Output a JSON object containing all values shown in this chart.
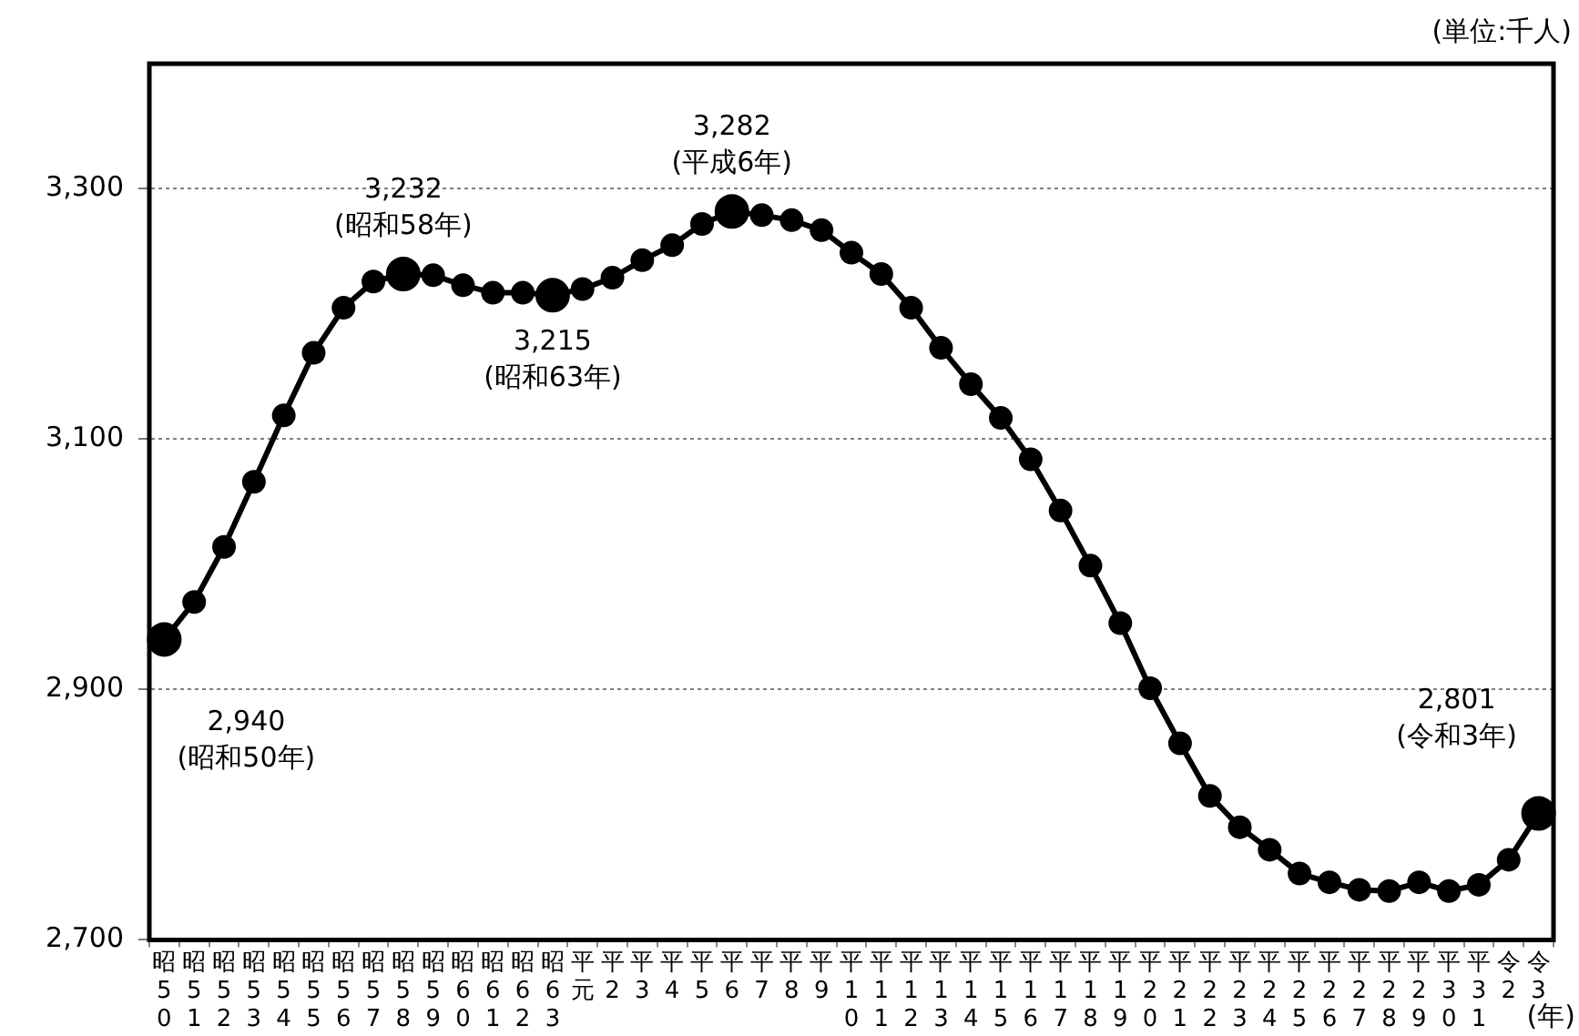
{
  "chart_data": {
    "type": "line",
    "categories": [
      "昭50",
      "昭51",
      "昭52",
      "昭53",
      "昭54",
      "昭55",
      "昭56",
      "昭57",
      "昭58",
      "昭59",
      "昭60",
      "昭61",
      "昭62",
      "昭63",
      "平元",
      "平2",
      "平3",
      "平4",
      "平5",
      "平6",
      "平7",
      "平8",
      "平9",
      "平10",
      "平11",
      "平12",
      "平13",
      "平14",
      "平15",
      "平16",
      "平17",
      "平18",
      "平19",
      "平20",
      "平21",
      "平22",
      "平23",
      "平24",
      "平25",
      "平26",
      "平27",
      "平28",
      "平29",
      "平30",
      "平31",
      "令2",
      "令3"
    ],
    "series": [
      {
        "color": "#000000",
        "values": [
          2940,
          2970,
          3014,
          3066,
          3119,
          3169,
          3205,
          3226,
          3232,
          3231,
          3223,
          3217,
          3217,
          3215,
          3220,
          3229,
          3243,
          3255,
          3272,
          3282,
          3279,
          3275,
          3267,
          3249,
          3232,
          3205,
          3173,
          3144,
          3117,
          3084,
          3043,
          2999,
          2953,
          2901,
          2857,
          2815,
          2790,
          2772,
          2753,
          2746,
          2740,
          2739,
          2746,
          2739,
          2744,
          2764,
          2801
        ]
      }
    ],
    "ylim": [
      2700,
      3400
    ],
    "yticks": [
      {
        "value": 2700,
        "label": "2,700"
      },
      {
        "value": 2900,
        "label": "2,900"
      },
      {
        "value": 3100,
        "label": "3,100"
      },
      {
        "value": 3300,
        "label": "3,300"
      }
    ],
    "grid": "y",
    "legend": false,
    "marker": "circle",
    "line_style": "solid",
    "annotations": [
      "(単位:千人)",
      "(年)",
      {
        "text": "2,940\n(昭和50年)",
        "x": "昭50",
        "y": 2940
      },
      {
        "text": "3,232\n(昭和58年)",
        "x": "昭58",
        "y": 3232
      },
      {
        "text": "3,215\n(昭和63年)",
        "x": "昭63",
        "y": 3215
      },
      {
        "text": "3,282\n(平成6年)",
        "x": "平6",
        "y": 3282
      },
      {
        "text": "2,801\n(令和3年)",
        "x": "令3",
        "y": 2801
      }
    ]
  }
}
